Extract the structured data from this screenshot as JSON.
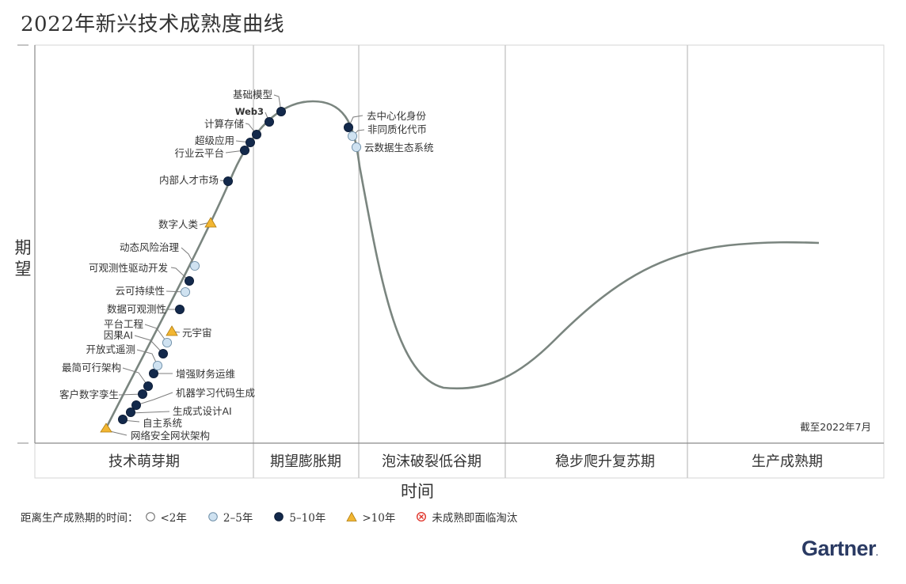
{
  "title": "2022年新兴技术成熟度曲线",
  "y_axis_label": [
    "期",
    "望"
  ],
  "x_axis_label": "时间",
  "date_note": "截至2022年7月",
  "brand": "Gartner",
  "legend": {
    "prefix": "距离生产成熟期的时间：",
    "items": [
      {
        "key": "lt2",
        "label": "<2年",
        "marker": "circle-white"
      },
      {
        "key": "2to5",
        "label": "2–5年",
        "marker": "circle-light-blue"
      },
      {
        "key": "5to10",
        "label": "5–10年",
        "marker": "circle-navy"
      },
      {
        "key": "gt10",
        "label": ">10年",
        "marker": "triangle-gold"
      },
      {
        "key": "obsolete",
        "label": "未成熟即面临淘汰",
        "marker": "cross-red"
      }
    ]
  },
  "colors": {
    "lt2": "#ffffff",
    "2to5": "#cfe2f1",
    "5to10": "#13294b",
    "gt10": "#f2b632",
    "obsolete": "#e0362c",
    "curve": "#7a857f",
    "grid": "#c8c8c8"
  },
  "chart_data": {
    "type": "scatter",
    "phases": [
      "技术萌芽期",
      "期望膨胀期",
      "泡沫破裂低谷期",
      "稳步爬升复苏期",
      "生产成熟期"
    ],
    "technologies": [
      {
        "name": "网络安全网状架构",
        "phase": "技术萌芽期",
        "years_to_plateau": ">10年"
      },
      {
        "name": "自主系统",
        "phase": "技术萌芽期",
        "years_to_plateau": "5–10年"
      },
      {
        "name": "生成式设计AI",
        "phase": "技术萌芽期",
        "years_to_plateau": "5–10年"
      },
      {
        "name": "机器学习代码生成",
        "phase": "技术萌芽期",
        "years_to_plateau": "5–10年"
      },
      {
        "name": "客户数字孪生",
        "phase": "技术萌芽期",
        "years_to_plateau": "5–10年"
      },
      {
        "name": "最简可行架构",
        "phase": "技术萌芽期",
        "years_to_plateau": "5–10年"
      },
      {
        "name": "增强财务运维",
        "phase": "技术萌芽期",
        "years_to_plateau": "5–10年"
      },
      {
        "name": "开放式遥测",
        "phase": "技术萌芽期",
        "years_to_plateau": "2–5年"
      },
      {
        "name": "因果AI",
        "phase": "技术萌芽期",
        "years_to_plateau": "5–10年"
      },
      {
        "name": "平台工程",
        "phase": "技术萌芽期",
        "years_to_plateau": "2–5年"
      },
      {
        "name": "元宇宙",
        "phase": "技术萌芽期",
        "years_to_plateau": ">10年"
      },
      {
        "name": "数据可观测性",
        "phase": "技术萌芽期",
        "years_to_plateau": "5–10年"
      },
      {
        "name": "云可持续性",
        "phase": "技术萌芽期",
        "years_to_plateau": "2–5年"
      },
      {
        "name": "可观测性驱动开发",
        "phase": "技术萌芽期",
        "years_to_plateau": "5–10年"
      },
      {
        "name": "动态风险治理",
        "phase": "技术萌芽期",
        "years_to_plateau": "2–5年"
      },
      {
        "name": "数字人类",
        "phase": "技术萌芽期",
        "years_to_plateau": ">10年"
      },
      {
        "name": "内部人才市场",
        "phase": "技术萌芽期",
        "years_to_plateau": "5–10年"
      },
      {
        "name": "行业云平台",
        "phase": "技术萌芽期",
        "years_to_plateau": "5–10年"
      },
      {
        "name": "超级应用",
        "phase": "技术萌芽期",
        "years_to_plateau": "5–10年"
      },
      {
        "name": "计算存储",
        "phase": "期望膨胀期",
        "years_to_plateau": "5–10年"
      },
      {
        "name": "Web3",
        "phase": "期望膨胀期",
        "years_to_plateau": "5–10年"
      },
      {
        "name": "基础模型",
        "phase": "期望膨胀期",
        "years_to_plateau": "5–10年"
      },
      {
        "name": "去中心化身份",
        "phase": "期望膨胀期",
        "years_to_plateau": "5–10年"
      },
      {
        "name": "非同质化代币",
        "phase": "期望膨胀期",
        "years_to_plateau": "2–5年"
      },
      {
        "name": "云数据生态系统",
        "phase": "泡沫破裂低谷期",
        "years_to_plateau": "2–5年"
      }
    ]
  }
}
